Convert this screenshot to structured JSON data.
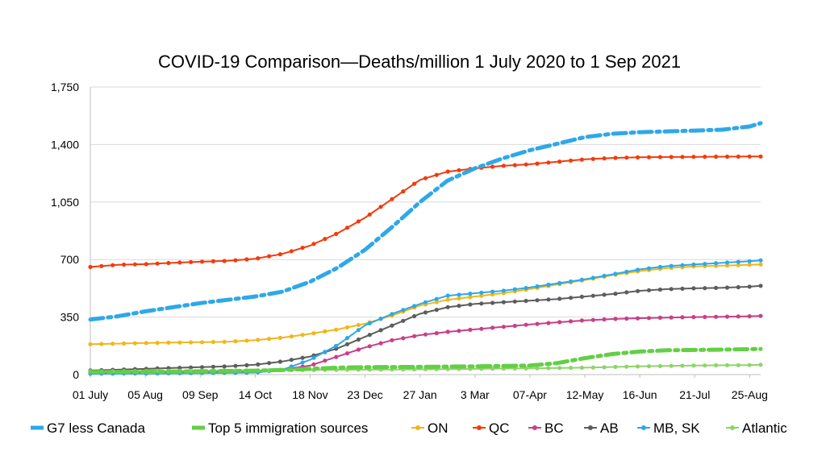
{
  "chart_data": {
    "type": "line",
    "title": "COVID-19 Comparison—Deaths/million 1 July 2020 to 1 Sep 2021",
    "xlabel": "",
    "ylabel": "",
    "ylim": [
      0,
      1750
    ],
    "yticks": [
      "0",
      "350",
      "700",
      "1,050",
      "1,400",
      "1,750"
    ],
    "ytick_values": [
      0,
      350,
      700,
      1050,
      1400,
      1750
    ],
    "categories": [
      "01 July",
      "05 Aug",
      "09 Sep",
      "14 Oct",
      "18 Nov",
      "23 Dec",
      "27 Jan",
      "3 Mar",
      "07-Apr",
      "12-May",
      "16-Jun",
      "21-Jul",
      "25-Aug"
    ],
    "x_extent": [
      0,
      12.2
    ],
    "grid": "horizontal",
    "legend_position": "bottom",
    "series": [
      {
        "name": "G7 less Canada",
        "color": "#2ea8e8",
        "style": "dashdot-thick",
        "x": [
          0,
          0.5,
          1,
          1.5,
          2,
          2.5,
          3,
          3.5,
          4,
          4.5,
          5,
          5.5,
          6,
          6.5,
          7,
          7.5,
          8,
          8.5,
          9,
          9.5,
          10,
          10.5,
          11,
          11.5,
          12,
          12.2
        ],
        "values": [
          335,
          355,
          385,
          410,
          435,
          455,
          475,
          505,
          565,
          650,
          760,
          900,
          1050,
          1180,
          1255,
          1315,
          1365,
          1405,
          1445,
          1465,
          1475,
          1480,
          1485,
          1490,
          1510,
          1530
        ]
      },
      {
        "name": "Top 5 immigration sources",
        "color": "#62cf45",
        "style": "dashdot-thick",
        "x": [
          0,
          1,
          2,
          3,
          3.5,
          4,
          4.5,
          5,
          6,
          7,
          8,
          8.5,
          9,
          9.5,
          10,
          10.5,
          11,
          11.5,
          12,
          12.2
        ],
        "values": [
          15,
          17,
          20,
          24,
          28,
          35,
          42,
          45,
          47,
          50,
          55,
          70,
          100,
          125,
          140,
          148,
          150,
          152,
          155,
          156
        ]
      },
      {
        "name": "ON",
        "color": "#f1b719",
        "style": "dotted-markers",
        "x": [
          0,
          1,
          2,
          2.5,
          3,
          3.5,
          4,
          4.5,
          5,
          5.5,
          6,
          6.5,
          7,
          7.5,
          8,
          8.5,
          9,
          9.5,
          10,
          10.5,
          11,
          11.5,
          12,
          12.2
        ],
        "values": [
          185,
          192,
          197,
          200,
          210,
          225,
          248,
          275,
          310,
          360,
          420,
          455,
          475,
          495,
          520,
          548,
          575,
          605,
          630,
          648,
          658,
          663,
          668,
          670
        ]
      },
      {
        "name": "QC",
        "color": "#f23b0c",
        "style": "dotted-markers",
        "x": [
          0,
          0.5,
          1,
          1.5,
          2,
          2.5,
          3,
          3.5,
          4,
          4.5,
          5,
          5.5,
          6,
          6.5,
          7,
          7.5,
          8,
          8.5,
          9,
          9.5,
          10,
          10.5,
          11,
          11.5,
          12,
          12.2
        ],
        "values": [
          655,
          668,
          672,
          680,
          687,
          692,
          705,
          735,
          785,
          860,
          955,
          1070,
          1185,
          1235,
          1255,
          1270,
          1280,
          1295,
          1310,
          1318,
          1322,
          1324,
          1325,
          1326,
          1327,
          1327
        ]
      },
      {
        "name": "BC",
        "color": "#c83f88",
        "style": "dotted-markers",
        "x": [
          0,
          1,
          2,
          3,
          3.5,
          4,
          4.5,
          5,
          5.5,
          6,
          6.5,
          7,
          7.5,
          8,
          8.5,
          9,
          9.5,
          10,
          10.5,
          11,
          11.5,
          12,
          12.2
        ],
        "values": [
          12,
          14,
          16,
          20,
          30,
          55,
          110,
          165,
          210,
          240,
          260,
          275,
          290,
          305,
          318,
          330,
          338,
          343,
          347,
          350,
          352,
          355,
          357
        ]
      },
      {
        "name": "AB",
        "color": "#5d5d5d",
        "style": "dotted-markers",
        "x": [
          0,
          0.5,
          1,
          1.5,
          2,
          2.5,
          3,
          3.5,
          4,
          4.5,
          5,
          5.5,
          6,
          6.5,
          7,
          7.5,
          8,
          8.5,
          9,
          9.5,
          10,
          10.5,
          11,
          11.5,
          12,
          12.2
        ],
        "values": [
          25,
          30,
          35,
          40,
          45,
          50,
          60,
          80,
          110,
          160,
          230,
          300,
          370,
          410,
          430,
          440,
          450,
          460,
          475,
          490,
          510,
          520,
          525,
          528,
          535,
          540
        ]
      },
      {
        "name": "MB, SK",
        "color": "#2ea8e8",
        "style": "dotted-markers",
        "x": [
          0,
          1,
          2,
          3,
          3.5,
          4,
          4.5,
          5,
          5.5,
          6,
          6.5,
          7,
          7.5,
          8,
          8.5,
          9,
          9.5,
          10,
          10.5,
          11,
          11.5,
          12,
          12.2
        ],
        "values": [
          5,
          7,
          9,
          12,
          30,
          90,
          180,
          300,
          370,
          430,
          480,
          495,
          510,
          530,
          555,
          580,
          610,
          640,
          660,
          670,
          680,
          690,
          695
        ]
      },
      {
        "name": "Atlantic",
        "color": "#8fd46a",
        "style": "dotted-markers",
        "x": [
          0,
          1,
          2,
          3,
          4,
          5,
          6,
          7,
          8,
          9,
          10,
          11,
          12,
          12.2
        ],
        "values": [
          20,
          22,
          24,
          26,
          28,
          30,
          32,
          35,
          38,
          42,
          50,
          55,
          58,
          60
        ]
      }
    ]
  }
}
